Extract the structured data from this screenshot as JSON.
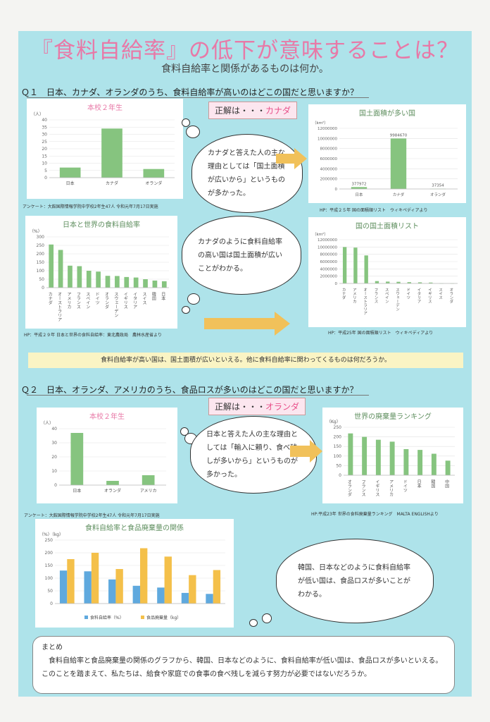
{
  "header": {
    "title": "『食料自給率』の低下が意味することは？",
    "subtitle": "食料自給率と関係があるものは何か。"
  },
  "q1": {
    "question": "Ｑ１　日本、カナダ、オランダのうち、食料自給率が高いのはどこの国だと思いますか？",
    "answer_prefix": "正解は・・・",
    "answer": "カナダ",
    "cloud1": "カナダと答えた人の主な理由としては「国土面積が広いから」というものが多かった。",
    "cloud2": "カナダのように食料自給率の高い国は国土面積が広いことがわかる。",
    "cap1": "アンケート：大館国際情報学院中学校2年生47人 令和元年7月17日実施",
    "cap2": "HP：平成２５年 国の面積順リスト　ウィキペディアより",
    "cap3": "HP：平成２９年 日本と世界の食料自給率：東北農政局　農林水産省より",
    "cap4": "HP：平成25年 国の面積順リスト　ウィキペディアより"
  },
  "banner": "食料自給率が高い国は、国土面積が広いといえる。他に食料自給率に関わってくるものは何だろうか。",
  "q2": {
    "question": "Ｑ２　日本、オランダ、アメリカのうち、食品ロスが多いのはどこの国だと思いますか？",
    "answer_prefix": "正解は・・・",
    "answer": "オランダ",
    "cloud1": "日本と答えた人の主な理由としては「輸入に頼り、食べ残しが多いから」というものが多かった。",
    "cloud2": "韓国、日本などのように食料自給率が低い国は、食品ロスが多いことがわかる。",
    "cap1": "アンケート：大館国際情報学院中学校2年生47人 令和元年7月17日実施",
    "cap2": "HP:平成23年 世界の食料廃棄量ランキング　MALTA ENGLISHより"
  },
  "summary": {
    "heading": "まとめ",
    "body": "食料自給率と食品廃棄量の関係のグラフから、韓国、日本などのように、食料自給率が低い国は、食品ロスが多いといえる。このことを踏まえて、私たちは、給食や家庭での食事の食べ残しを減らす努力が必要ではないだろうか。"
  },
  "colors": {
    "bar_green": "#86c47f",
    "bar_blue": "#5fa9de",
    "bar_orange": "#f4c04a",
    "pink": "#e879a7",
    "arrow": "#f1c15a"
  },
  "chart_data": [
    {
      "id": "c1",
      "type": "bar",
      "title": "本校２年生",
      "ylabel": "（人）",
      "ylim": [
        0,
        40
      ],
      "yticks": [
        0,
        5,
        10,
        15,
        20,
        25,
        30,
        35,
        40
      ],
      "categories": [
        "日本",
        "カナダ",
        "オランダ"
      ],
      "values": [
        7,
        34,
        6
      ]
    },
    {
      "id": "c2",
      "type": "bar",
      "title": "国土面積が多い国",
      "ylabel": "（km²）",
      "ylim": [
        0,
        12000000
      ],
      "yticks": [
        0,
        2000000,
        4000000,
        6000000,
        8000000,
        10000000,
        12000000
      ],
      "categories": [
        "日本",
        "カナダ",
        "オランダ"
      ],
      "values": [
        377972,
        9984670,
        37354
      ],
      "data_labels": [
        "377972",
        "9984670",
        "37354"
      ]
    },
    {
      "id": "c3",
      "type": "bar",
      "title": "日本と世界の食料自給率",
      "ylabel": "（%）",
      "ylim": [
        0,
        300
      ],
      "yticks": [
        0,
        50,
        100,
        150,
        200,
        250,
        300
      ],
      "categories": [
        "カナダ",
        "オーストラリア",
        "アメリカ",
        "フランス",
        "スペイン",
        "ドイツ",
        "オランダ",
        "スウェーデン",
        "イギリス",
        "イタリア",
        "スイス",
        "韓国",
        "日本"
      ],
      "values": [
        255,
        223,
        130,
        127,
        100,
        95,
        70,
        69,
        63,
        60,
        50,
        42,
        38
      ]
    },
    {
      "id": "c4",
      "type": "bar",
      "title": "国の国土面積リスト",
      "ylabel": "（km²）",
      "ylim": [
        0,
        12000000
      ],
      "yticks": [
        0,
        2000000,
        4000000,
        6000000,
        8000000,
        10000000,
        12000000
      ],
      "categories": [
        "カナダ",
        "アメリカ",
        "オーストラリア",
        "フランス",
        "スペイン",
        "スウェーデン",
        "ドイツ",
        "イタリア",
        "イギリス",
        "スイス",
        "オランダ"
      ],
      "values": [
        9984670,
        9833517,
        7692024,
        643801,
        505370,
        450295,
        357168,
        301340,
        242495,
        41284,
        37354
      ]
    },
    {
      "id": "c5",
      "type": "bar",
      "title": "本校２年生",
      "ylabel": "（人）",
      "ylim": [
        0,
        40
      ],
      "yticks": [
        0,
        10,
        20,
        30,
        40
      ],
      "categories": [
        "日本",
        "オランダ",
        "アメリカ"
      ],
      "values": [
        37,
        3,
        7
      ]
    },
    {
      "id": "c6",
      "type": "bar",
      "title": "世界の廃棄量ランキング",
      "ylabel": "（Kg）",
      "ylim": [
        0,
        250
      ],
      "yticks": [
        0,
        50,
        100,
        150,
        200,
        250
      ],
      "categories": [
        "オランダ",
        "フランス",
        "イギリス",
        "アメリカ",
        "ドイツ",
        "日本",
        "韓国",
        "中国"
      ],
      "values": [
        218,
        200,
        185,
        175,
        136,
        132,
        112,
        76
      ]
    },
    {
      "id": "c7",
      "type": "bar",
      "title": "食料自給率と食品廃棄量の関係",
      "ylabel": "（%）（kg）",
      "ylim": [
        0,
        250
      ],
      "yticks": [
        0,
        50,
        100,
        150,
        200,
        250
      ],
      "categories": [
        "",
        "",
        "",
        "",
        "",
        "",
        ""
      ],
      "series": [
        {
          "name": "食料自給率（%）",
          "values": [
            130,
            127,
            95,
            70,
            63,
            42,
            38
          ]
        },
        {
          "name": "食品廃棄量（kg）",
          "values": [
            175,
            200,
            136,
            218,
            185,
            112,
            132
          ]
        }
      ]
    }
  ]
}
